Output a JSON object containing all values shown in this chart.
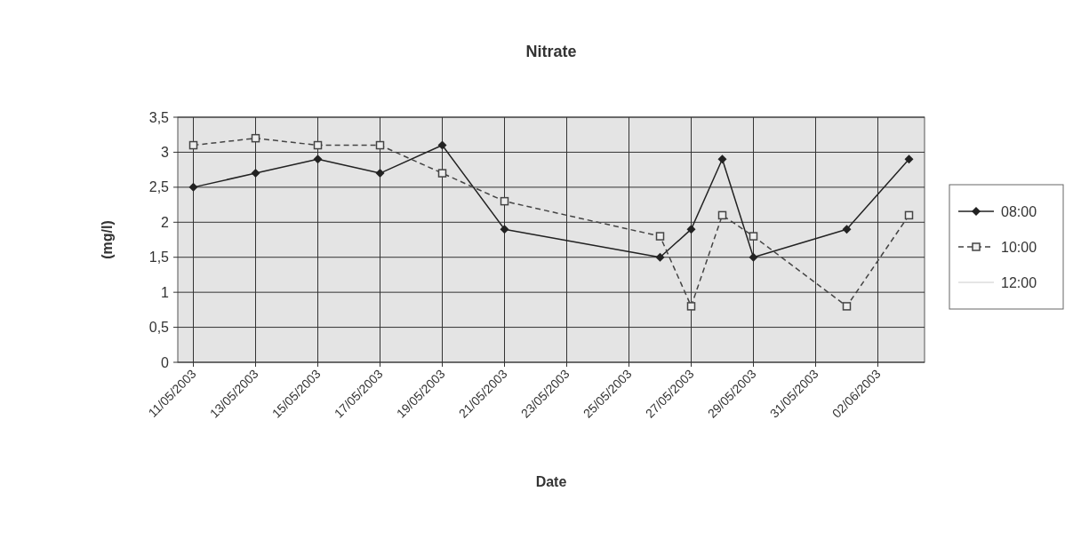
{
  "chart_data": {
    "type": "line",
    "title": "Nitrate",
    "xlabel": "Date",
    "ylabel": "(mg/l)",
    "x": [
      "2003-05-11",
      "2003-05-13",
      "2003-05-15",
      "2003-05-17",
      "2003-05-19",
      "2003-05-21",
      "2003-05-26",
      "2003-05-27",
      "2003-05-28",
      "2003-05-29",
      "2003-06-01",
      "2003-06-03"
    ],
    "series": [
      {
        "name": "08:00",
        "color": "#222222",
        "marker": "diamond",
        "line_style": "solid",
        "values": [
          2.5,
          2.7,
          2.9,
          2.7,
          3.1,
          1.9,
          1.5,
          1.9,
          2.9,
          1.5,
          1.9,
          2.9
        ]
      },
      {
        "name": "10:00",
        "color": "#444444",
        "marker": "square",
        "line_style": "dashed",
        "values": [
          3.1,
          3.2,
          3.1,
          3.1,
          2.7,
          2.3,
          1.8,
          0.8,
          2.1,
          1.8,
          0.8,
          2.1
        ]
      },
      {
        "name": "12:00",
        "color": "#dddddd",
        "marker": "none",
        "line_style": "solid",
        "values": [
          null,
          null,
          null,
          null,
          null,
          null,
          null,
          null,
          null,
          null,
          null,
          null
        ]
      }
    ],
    "xlim": [
      "2003-05-10T12:00",
      "2003-06-03T12:00"
    ],
    "xticks": [
      {
        "value": "2003-05-11",
        "label": "11/05/2003"
      },
      {
        "value": "2003-05-13",
        "label": "13/05/2003"
      },
      {
        "value": "2003-05-15",
        "label": "15/05/2003"
      },
      {
        "value": "2003-05-17",
        "label": "17/05/2003"
      },
      {
        "value": "2003-05-19",
        "label": "19/05/2003"
      },
      {
        "value": "2003-05-21",
        "label": "21/05/2003"
      },
      {
        "value": "2003-05-23",
        "label": "23/05/2003"
      },
      {
        "value": "2003-05-25",
        "label": "25/05/2003"
      },
      {
        "value": "2003-05-27",
        "label": "27/05/2003"
      },
      {
        "value": "2003-05-29",
        "label": "29/05/2003"
      },
      {
        "value": "2003-05-31",
        "label": "31/05/2003"
      },
      {
        "value": "2003-06-02",
        "label": "02/06/2003"
      }
    ],
    "ylim": [
      0,
      3.5
    ],
    "yticks": [
      0,
      {
        "value": 0.5,
        "label": "0,5"
      },
      1,
      {
        "value": 1.5,
        "label": "1,5"
      },
      2,
      {
        "value": 2.5,
        "label": "2,5"
      },
      3,
      {
        "value": 3.5,
        "label": "3,5"
      }
    ],
    "grid": true,
    "legend": "right"
  }
}
